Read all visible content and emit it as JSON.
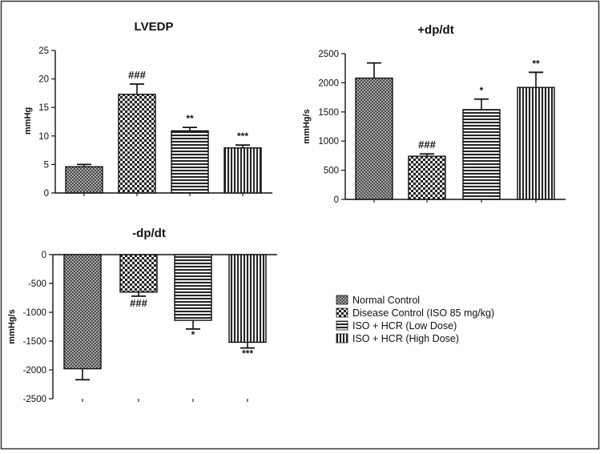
{
  "chart_data": [
    {
      "type": "bar",
      "title": "LVEDP",
      "ylabel": "mmHg",
      "ylim": [
        0,
        25
      ],
      "yticks": [
        0,
        5,
        10,
        15,
        20,
        25
      ],
      "yticklabels": [
        "0",
        "5",
        "10",
        "15",
        "20",
        "25"
      ],
      "categories": [
        "Normal Control",
        "Disease Control (ISO 85 mg/kg)",
        "ISO + HCR (Low Dose)",
        "ISO + HCR (High Dose)"
      ],
      "values": [
        4.6,
        17.3,
        10.9,
        7.9
      ],
      "errors": [
        0.4,
        1.8,
        0.6,
        0.5
      ],
      "annotations": [
        "",
        "###",
        "**",
        "***"
      ]
    },
    {
      "type": "bar",
      "title": "+dp/dt",
      "ylabel": "mmHg/s",
      "ylim": [
        0,
        2500
      ],
      "yticks": [
        0,
        500,
        1000,
        1500,
        2000,
        2500
      ],
      "yticklabels": [
        "0",
        "500",
        "1000",
        "1500",
        "2000",
        "2500"
      ],
      "categories": [
        "Normal Control",
        "Disease Control (ISO 85 mg/kg)",
        "ISO + HCR (Low Dose)",
        "ISO + HCR (High Dose)"
      ],
      "values": [
        2080,
        740,
        1540,
        1920
      ],
      "errors": [
        260,
        40,
        180,
        260
      ],
      "annotations": [
        "",
        "###",
        "*",
        "**"
      ]
    },
    {
      "type": "bar",
      "title": "-dp/dt",
      "ylabel": "mmHg/s",
      "ylim": [
        -2500,
        0
      ],
      "yticks": [
        -2500,
        -2000,
        -1500,
        -1000,
        -500,
        0
      ],
      "yticklabels": [
        "-2500",
        "-2000",
        "-1500",
        "-1000",
        "-500",
        "0"
      ],
      "categories": [
        "Normal Control",
        "Disease Control (ISO 85 mg/kg)",
        "ISO + HCR (Low Dose)",
        "ISO + HCR (High Dose)"
      ],
      "values": [
        -1980,
        -650,
        -1140,
        -1520
      ],
      "errors": [
        190,
        70,
        150,
        100
      ],
      "annotations": [
        "",
        "###",
        "*",
        "***"
      ]
    }
  ],
  "legend": {
    "entries": [
      "Normal Control",
      "Disease Control (ISO 85 mg/kg)",
      "ISO + HCR (Low Dose)",
      "ISO + HCR (High Dose)"
    ],
    "patterns": [
      "dots",
      "checker",
      "hstripes",
      "vstripes"
    ]
  }
}
